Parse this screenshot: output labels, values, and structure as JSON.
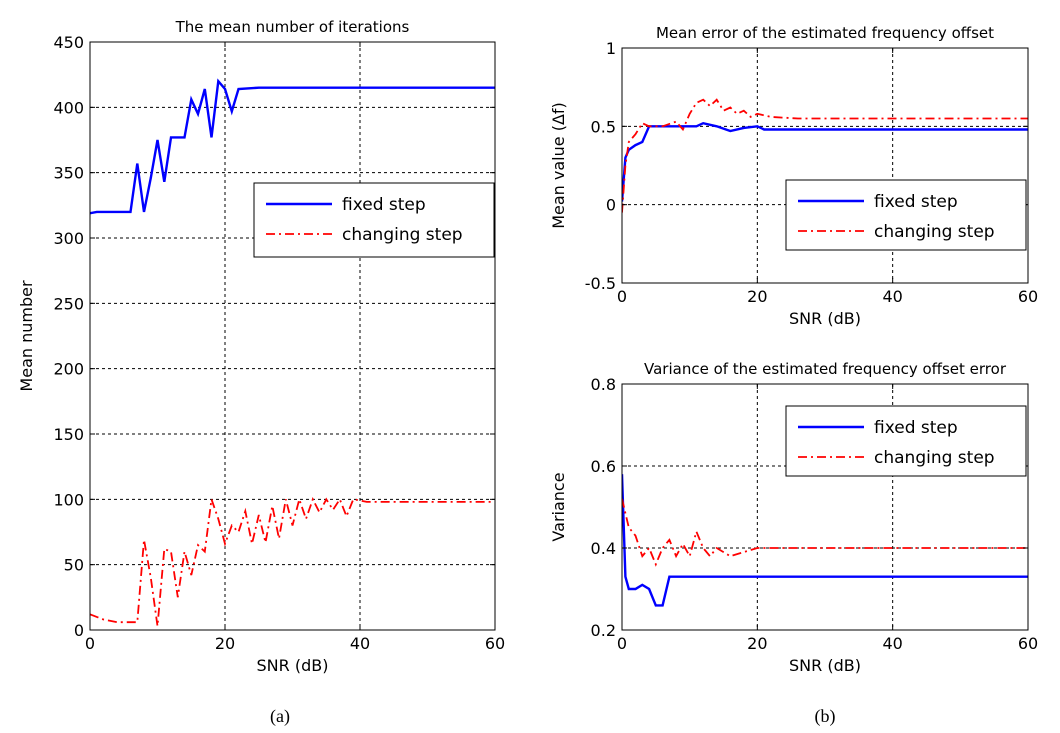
{
  "figure": {
    "caption_a": "(a)",
    "caption_b": "(b)"
  },
  "chart_data": [
    {
      "id": "iterations",
      "type": "line",
      "title": "The mean number of iterations",
      "xlabel": "SNR (dB)",
      "ylabel": "Mean number",
      "xlim": [
        0,
        60
      ],
      "ylim": [
        0,
        450
      ],
      "xticks": [
        0,
        20,
        40,
        60
      ],
      "yticks": [
        0,
        50,
        100,
        150,
        200,
        250,
        300,
        350,
        400,
        450
      ],
      "grid": true,
      "legend_position": "center-right",
      "series": [
        {
          "name": "fixed step",
          "color": "#0000ff",
          "style": "solid",
          "points": [
            [
              0,
              319
            ],
            [
              1,
              320
            ],
            [
              6,
              320
            ],
            [
              7,
              357
            ],
            [
              8,
              320
            ],
            [
              9,
              346
            ],
            [
              10,
              375
            ],
            [
              11,
              343
            ],
            [
              12,
              377
            ],
            [
              13,
              377
            ],
            [
              14,
              377
            ],
            [
              15,
              406
            ],
            [
              16,
              395
            ],
            [
              17,
              414
            ],
            [
              18,
              377
            ],
            [
              19,
              420
            ],
            [
              20,
              414
            ],
            [
              21,
              397
            ],
            [
              22,
              414
            ],
            [
              25,
              415
            ],
            [
              60,
              415
            ]
          ]
        },
        {
          "name": "changing step",
          "color": "#ff0000",
          "style": "dashdot",
          "points": [
            [
              0,
              12
            ],
            [
              2,
              8
            ],
            [
              4,
              6
            ],
            [
              7,
              6
            ],
            [
              8,
              69
            ],
            [
              9,
              40
            ],
            [
              10,
              3
            ],
            [
              11,
              62
            ],
            [
              12,
              60
            ],
            [
              13,
              25
            ],
            [
              14,
              60
            ],
            [
              15,
              42
            ],
            [
              16,
              65
            ],
            [
              17,
              60
            ],
            [
              18,
              100
            ],
            [
              19,
              85
            ],
            [
              20,
              66
            ],
            [
              21,
              80
            ],
            [
              22,
              75
            ],
            [
              23,
              91
            ],
            [
              24,
              66
            ],
            [
              25,
              88
            ],
            [
              26,
              67
            ],
            [
              27,
              95
            ],
            [
              28,
              70
            ],
            [
              29,
              100
            ],
            [
              30,
              80
            ],
            [
              31,
              100
            ],
            [
              32,
              85
            ],
            [
              33,
              100
            ],
            [
              34,
              90
            ],
            [
              35,
              100
            ],
            [
              36,
              92
            ],
            [
              37,
              100
            ],
            [
              38,
              87
            ],
            [
              39,
              100
            ],
            [
              41,
              98
            ],
            [
              60,
              98
            ]
          ]
        }
      ]
    },
    {
      "id": "mean_error",
      "type": "line",
      "title": "Mean error of the estimated frequency offset",
      "xlabel": "SNR (dB)",
      "ylabel": "Mean value (Δf)",
      "xlim": [
        0,
        60
      ],
      "ylim": [
        -0.5,
        1
      ],
      "xticks": [
        0,
        20,
        40,
        60
      ],
      "yticks": [
        -0.5,
        0,
        0.5,
        1
      ],
      "ytick_labels": [
        "-0.5",
        "0",
        "0.5",
        "1"
      ],
      "grid": true,
      "legend_position": "lower-right",
      "series": [
        {
          "name": "fixed step",
          "color": "#0000ff",
          "style": "solid",
          "points": [
            [
              0,
              0.02
            ],
            [
              0.5,
              0.3
            ],
            [
              1,
              0.35
            ],
            [
              2,
              0.38
            ],
            [
              3,
              0.4
            ],
            [
              4,
              0.5
            ],
            [
              5,
              0.5
            ],
            [
              8,
              0.5
            ],
            [
              10,
              0.5
            ],
            [
              11,
              0.5
            ],
            [
              12,
              0.52
            ],
            [
              14,
              0.5
            ],
            [
              16,
              0.47
            ],
            [
              18,
              0.49
            ],
            [
              20,
              0.5
            ],
            [
              21,
              0.48
            ],
            [
              22,
              0.48
            ],
            [
              60,
              0.48
            ]
          ]
        },
        {
          "name": "changing step",
          "color": "#ff0000",
          "style": "dashdot",
          "points": [
            [
              0,
              -0.05
            ],
            [
              0.5,
              0.25
            ],
            [
              1,
              0.4
            ],
            [
              2,
              0.45
            ],
            [
              3,
              0.52
            ],
            [
              4,
              0.5
            ],
            [
              6,
              0.5
            ],
            [
              8,
              0.53
            ],
            [
              9,
              0.48
            ],
            [
              10,
              0.58
            ],
            [
              11,
              0.65
            ],
            [
              12,
              0.67
            ],
            [
              13,
              0.63
            ],
            [
              14,
              0.67
            ],
            [
              15,
              0.6
            ],
            [
              16,
              0.62
            ],
            [
              17,
              0.58
            ],
            [
              18,
              0.6
            ],
            [
              19,
              0.56
            ],
            [
              20,
              0.58
            ],
            [
              22,
              0.56
            ],
            [
              26,
              0.55
            ],
            [
              60,
              0.55
            ]
          ]
        }
      ]
    },
    {
      "id": "variance",
      "type": "line",
      "title": "Variance of the estimated frequency offset error",
      "xlabel": "SNR (dB)",
      "ylabel": "Variance",
      "xlim": [
        0,
        60
      ],
      "ylim": [
        0.2,
        0.8
      ],
      "xticks": [
        0,
        20,
        40,
        60
      ],
      "yticks": [
        0.2,
        0.4,
        0.6,
        0.8
      ],
      "ytick_labels": [
        "0.2",
        "0.4",
        "0.6",
        "0.8"
      ],
      "grid": true,
      "legend_position": "top-right",
      "series": [
        {
          "name": "fixed step",
          "color": "#0000ff",
          "style": "solid",
          "points": [
            [
              0,
              0.58
            ],
            [
              0.5,
              0.33
            ],
            [
              1,
              0.3
            ],
            [
              2,
              0.3
            ],
            [
              3,
              0.31
            ],
            [
              4,
              0.3
            ],
            [
              5,
              0.26
            ],
            [
              6,
              0.26
            ],
            [
              7,
              0.33
            ],
            [
              60,
              0.33
            ]
          ]
        },
        {
          "name": "changing step",
          "color": "#ff0000",
          "style": "dashdot",
          "points": [
            [
              0,
              0.52
            ],
            [
              1,
              0.45
            ],
            [
              2,
              0.43
            ],
            [
              3,
              0.38
            ],
            [
              4,
              0.4
            ],
            [
              5,
              0.36
            ],
            [
              6,
              0.4
            ],
            [
              7,
              0.42
            ],
            [
              8,
              0.38
            ],
            [
              9,
              0.41
            ],
            [
              10,
              0.38
            ],
            [
              11,
              0.44
            ],
            [
              12,
              0.4
            ],
            [
              13,
              0.38
            ],
            [
              14,
              0.4
            ],
            [
              16,
              0.38
            ],
            [
              18,
              0.39
            ],
            [
              20,
              0.4
            ],
            [
              60,
              0.4
            ]
          ]
        }
      ]
    }
  ]
}
